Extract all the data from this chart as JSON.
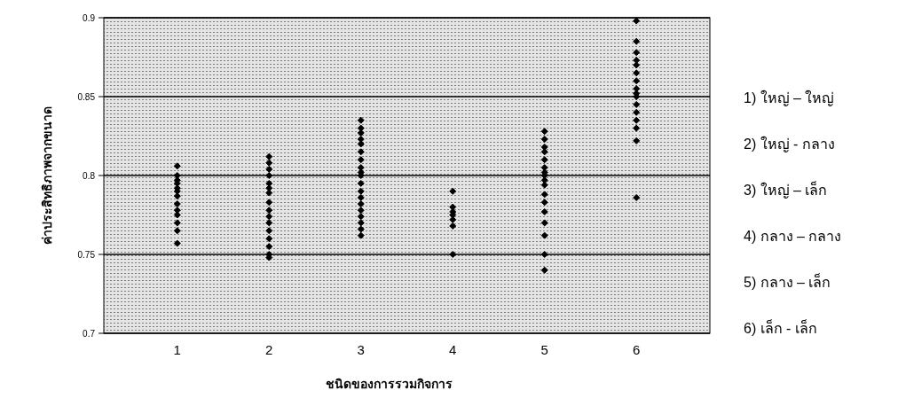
{
  "chart_data": {
    "type": "scatter",
    "xlabel": "ชนิดของการรวมกิจการ",
    "ylabel": "ค่าประสิทธิภาพจากขนาด",
    "xlim": [
      0.2,
      6.8
    ],
    "xticks": [
      1,
      2,
      3,
      4,
      5,
      6
    ],
    "ylim": [
      0.7,
      0.9
    ],
    "yticks": [
      0.7,
      0.75,
      0.8,
      0.85,
      0.9
    ],
    "grid": "y",
    "marker": "diamond",
    "series": [
      {
        "color": "#000000",
        "x": [
          1,
          1,
          1,
          1,
          1,
          1,
          1,
          1,
          1,
          1,
          1,
          1,
          1,
          2,
          2,
          2,
          2,
          2,
          2,
          2,
          2,
          2,
          2,
          2,
          2,
          2,
          2,
          2,
          2,
          3,
          3,
          3,
          3,
          3,
          3,
          3,
          3,
          3,
          3,
          3,
          3,
          3,
          3,
          3,
          3,
          3,
          3,
          3,
          4,
          4,
          4,
          4,
          4,
          4,
          4,
          5,
          5,
          5,
          5,
          5,
          5,
          5,
          5,
          5,
          5,
          5,
          5,
          5,
          5,
          5,
          5,
          5,
          6,
          6,
          6,
          6,
          6,
          6,
          6,
          6,
          6,
          6,
          6,
          6,
          6,
          6,
          6,
          6
        ],
        "values": [
          0.806,
          0.8,
          0.797,
          0.795,
          0.792,
          0.79,
          0.787,
          0.782,
          0.778,
          0.775,
          0.77,
          0.765,
          0.757,
          0.812,
          0.808,
          0.804,
          0.8,
          0.795,
          0.792,
          0.789,
          0.783,
          0.778,
          0.774,
          0.77,
          0.765,
          0.76,
          0.755,
          0.75,
          0.748,
          0.835,
          0.83,
          0.827,
          0.823,
          0.82,
          0.815,
          0.81,
          0.805,
          0.802,
          0.8,
          0.795,
          0.79,
          0.786,
          0.782,
          0.778,
          0.774,
          0.77,
          0.766,
          0.762,
          0.79,
          0.78,
          0.777,
          0.775,
          0.772,
          0.768,
          0.75,
          0.828,
          0.823,
          0.818,
          0.815,
          0.81,
          0.805,
          0.802,
          0.8,
          0.797,
          0.794,
          0.788,
          0.783,
          0.777,
          0.77,
          0.762,
          0.75,
          0.74,
          0.898,
          0.885,
          0.878,
          0.873,
          0.87,
          0.865,
          0.86,
          0.855,
          0.852,
          0.85,
          0.845,
          0.84,
          0.835,
          0.83,
          0.822,
          0.786
        ]
      }
    ],
    "annotations": [
      "1) ใหญ่ – ใหญ่",
      "2) ใหญ่ - กลาง",
      "3) ใหญ่ – เล็ก",
      "4) กลาง – กลาง",
      "5) กลาง – เล็ก",
      "6) เล็ก - เล็ก"
    ]
  }
}
